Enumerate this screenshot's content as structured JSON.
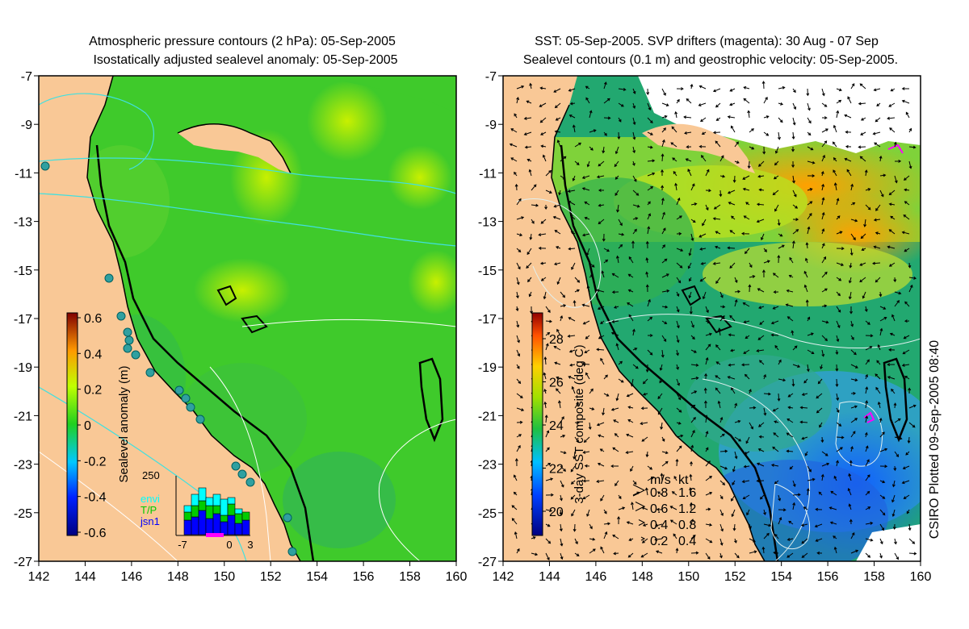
{
  "left_panel": {
    "title_line1": "Atmospheric pressure contours (2 hPa): 05-Sep-2005",
    "title_line2": "Isostatically adjusted sealevel anomaly: 05-Sep-2005",
    "x_ticks": [
      "142",
      "144",
      "146",
      "148",
      "150",
      "152",
      "154",
      "156",
      "158",
      "160"
    ],
    "y_ticks": [
      "-7",
      "-9",
      "-11",
      "-13",
      "-15",
      "-17",
      "-19",
      "-21",
      "-23",
      "-25",
      "-27"
    ],
    "colorbar_label": "Sealevel anomaly (m)",
    "colorbar_ticks": [
      "0.6",
      "0.4",
      "0.2",
      "0",
      "-0.2",
      "-0.4",
      "-0.6"
    ],
    "inset": {
      "ymax_label": "250",
      "legend": [
        {
          "name": "envi",
          "color": "#00ffff"
        },
        {
          "name": "T/P",
          "color": "#00cc00"
        },
        {
          "name": "jsn1",
          "color": "#0000ff"
        }
      ],
      "x_ticks": [
        "-7",
        "0",
        "3"
      ],
      "bars": [
        {
          "blue": 18,
          "green": 10,
          "cyan": 8
        },
        {
          "blue": 22,
          "green": 14,
          "cyan": 14
        },
        {
          "blue": 30,
          "green": 12,
          "cyan": 16
        },
        {
          "blue": 20,
          "green": 16,
          "cyan": 10
        },
        {
          "blue": 26,
          "green": 10,
          "cyan": 14
        },
        {
          "blue": 16,
          "green": 8,
          "cyan": 20
        },
        {
          "blue": 24,
          "green": 14,
          "cyan": 8
        },
        {
          "blue": 14,
          "green": 12,
          "cyan": 6
        },
        {
          "blue": 18,
          "green": 10,
          "cyan": 0
        }
      ]
    }
  },
  "right_panel": {
    "title_line1": "SST: 05-Sep-2005. SVP drifters (magenta): 30 Aug - 07 Sep",
    "title_line2": "Sealevel contours (0.1 m) and geostrophic velocity: 05-Sep-2005.",
    "x_ticks": [
      "142",
      "144",
      "146",
      "148",
      "150",
      "152",
      "154",
      "156",
      "158",
      "160"
    ],
    "y_ticks": [
      "-7",
      "-9",
      "-11",
      "-13",
      "-15",
      "-17",
      "-19",
      "-21",
      "-23",
      "-25",
      "-27"
    ],
    "colorbar_label": "3-day SST composite (deg C)",
    "colorbar_ticks": [
      "28",
      "26",
      "24",
      "22",
      "20"
    ],
    "velocity_legend": {
      "header_ms": "m/s",
      "header_kt": "kt",
      "rows": [
        {
          "ms": "0.8",
          "kt": "1.6"
        },
        {
          "ms": "0.6",
          "kt": "1.2"
        },
        {
          "ms": "0.4",
          "kt": "0.8"
        },
        {
          "ms": "0.2",
          "kt": "0.4"
        }
      ]
    }
  },
  "credit": "CSIRO Plotted 09-Sep-2005 08:40",
  "colors": {
    "land": "#f9c896",
    "ocean_green": "#3fca2b",
    "coast": "#000000",
    "pressure_contour": "#40e0e0",
    "drifter": "#ff00ff"
  }
}
